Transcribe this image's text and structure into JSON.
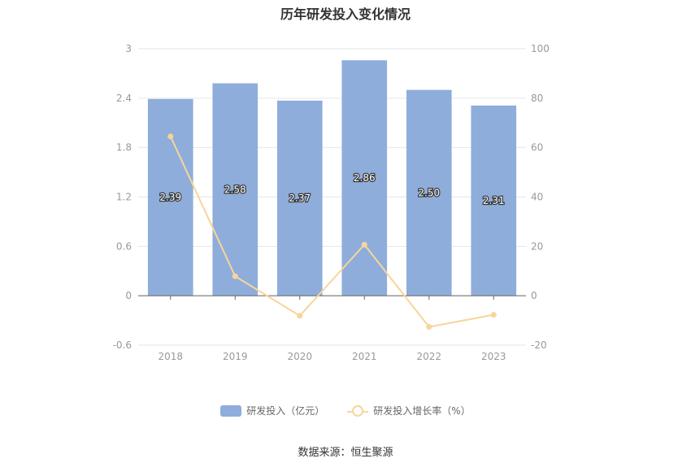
{
  "chart_data": {
    "type": "bar",
    "title": "历年研发投入变化情况",
    "categories": [
      "2018",
      "2019",
      "2020",
      "2021",
      "2022",
      "2023"
    ],
    "series": [
      {
        "name": "研发投入（亿元）",
        "type": "bar",
        "axis": "left",
        "values": [
          2.39,
          2.58,
          2.37,
          2.86,
          2.5,
          2.31
        ],
        "labels": [
          "2.39",
          "2.58",
          "2.37",
          "2.86",
          "2.50",
          "2.31"
        ],
        "color": "#8eaddb"
      },
      {
        "name": "研发投入增长率（%）",
        "type": "line",
        "axis": "right",
        "values": [
          64.5,
          7.9,
          -8.1,
          20.7,
          -12.6,
          -7.7
        ],
        "color": "#f7d59a"
      }
    ],
    "y_left": {
      "ylim": [
        -0.6,
        3
      ],
      "ticks": [
        "3",
        "2.4",
        "1.8",
        "1.2",
        "0.6",
        "0",
        "-0.6"
      ]
    },
    "y_right": {
      "ylim": [
        -20,
        100
      ],
      "ticks": [
        "100",
        "80",
        "60",
        "40",
        "20",
        "0",
        "-20"
      ]
    },
    "grid": true,
    "legend_position": "bottom"
  },
  "source_text": "数据来源：恒生聚源"
}
